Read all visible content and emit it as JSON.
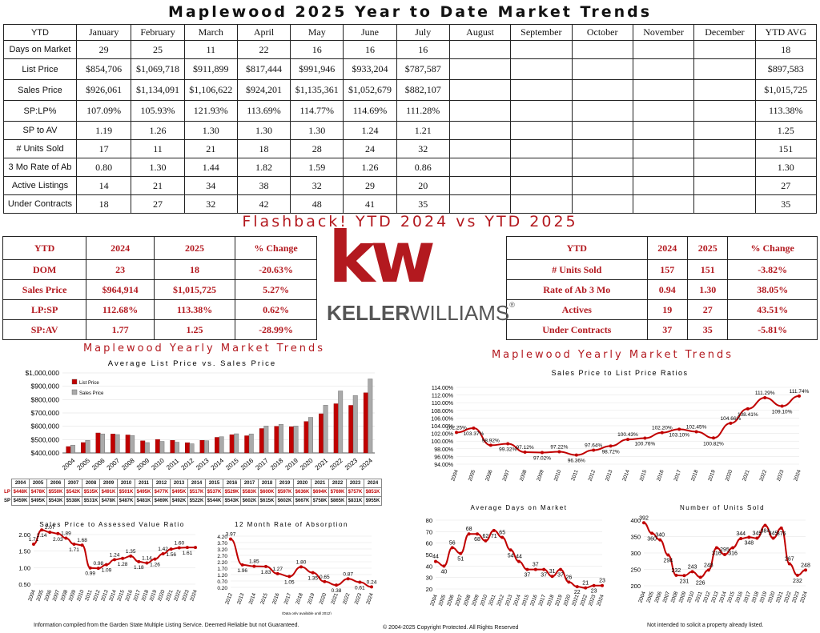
{
  "title": "Maplewood 2025 Year to Date Market Trends",
  "ytd_table": {
    "headers": [
      "YTD",
      "January",
      "February",
      "March",
      "April",
      "May",
      "June",
      "July",
      "August",
      "September",
      "October",
      "November",
      "December",
      "YTD AVG"
    ],
    "rows": [
      {
        "label": "Days on Market",
        "values": [
          "29",
          "25",
          "11",
          "22",
          "16",
          "16",
          "16",
          "",
          "",
          "",
          "",
          ""
        ],
        "avg": "18"
      },
      {
        "label": "List Price",
        "values": [
          "$854,706",
          "$1,069,718",
          "$911,899",
          "$817,444",
          "$991,946",
          "$933,204",
          "$787,587",
          "",
          "",
          "",
          "",
          ""
        ],
        "avg": "$897,583"
      },
      {
        "label": "Sales Price",
        "values": [
          "$926,061",
          "$1,134,091",
          "$1,106,622",
          "$924,201",
          "$1,135,361",
          "$1,052,679",
          "$882,107",
          "",
          "",
          "",
          "",
          ""
        ],
        "avg": "$1,015,725"
      },
      {
        "label": "SP:LP%",
        "values": [
          "107.09%",
          "105.93%",
          "121.93%",
          "113.69%",
          "114.77%",
          "114.69%",
          "111.28%",
          "",
          "",
          "",
          "",
          ""
        ],
        "avg": "113.38%"
      },
      {
        "label": "SP to AV",
        "values": [
          "1.19",
          "1.26",
          "1.30",
          "1.30",
          "1.30",
          "1.24",
          "1.21",
          "",
          "",
          "",
          "",
          ""
        ],
        "avg": "1.25"
      },
      {
        "label": "# Units Sold",
        "values": [
          "17",
          "11",
          "21",
          "18",
          "28",
          "24",
          "32",
          "",
          "",
          "",
          "",
          ""
        ],
        "avg": "151"
      },
      {
        "label": "3 Mo Rate of Ab",
        "values": [
          "0.80",
          "1.30",
          "1.44",
          "1.82",
          "1.59",
          "1.26",
          "0.86",
          "",
          "",
          "",
          "",
          ""
        ],
        "avg": "1.30"
      },
      {
        "label": "Active Listings",
        "values": [
          "14",
          "21",
          "34",
          "38",
          "32",
          "29",
          "20",
          "",
          "",
          "",
          "",
          ""
        ],
        "avg": "27"
      },
      {
        "label": "Under Contracts",
        "values": [
          "18",
          "27",
          "32",
          "42",
          "48",
          "41",
          "35",
          "",
          "",
          "",
          "",
          ""
        ],
        "avg": "35"
      }
    ]
  },
  "flashback_title": "Flashback!  YTD 2024 vs YTD 2025",
  "compare_left": {
    "headers": [
      "YTD",
      "2024",
      "2025",
      "% Change"
    ],
    "rows": [
      [
        "DOM",
        "23",
        "18",
        "-20.63%"
      ],
      [
        "Sales Price",
        "$964,914",
        "$1,015,725",
        "5.27%"
      ],
      [
        "LP:SP",
        "112.68%",
        "113.38%",
        "0.62%"
      ],
      [
        "SP:AV",
        "1.77",
        "1.25",
        "-28.99%"
      ]
    ]
  },
  "compare_right": {
    "headers": [
      "YTD",
      "2024",
      "2025",
      "% Change"
    ],
    "rows": [
      [
        "# Units Sold",
        "157",
        "151",
        "-3.82%"
      ],
      [
        "Rate of Ab 3 Mo",
        "0.94",
        "1.30",
        "38.05%"
      ],
      [
        "Actives",
        "19",
        "27",
        "43.51%"
      ],
      [
        "Under Contracts",
        "37",
        "35",
        "-5.81%"
      ]
    ]
  },
  "logo": {
    "kw": "kw",
    "keller": "KELLER",
    "williams": "WILLIAMS",
    "reg": "®",
    "color": "#b3191f"
  },
  "section_left": "Maplewood Yearly Market Trends",
  "section_right": "Maplewood Yearly Market Trends",
  "chart_data": [
    {
      "type": "bar",
      "title": "Average List Price vs. Sales Price",
      "categories": [
        "2004",
        "2005",
        "2006",
        "2007",
        "2008",
        "2009",
        "2010",
        "2011",
        "2012",
        "2013",
        "2014",
        "2015",
        "2016",
        "2017",
        "2018",
        "2019",
        "2020",
        "2021",
        "2022",
        "2023",
        "2024"
      ],
      "series": [
        {
          "name": "List Price",
          "color": "#c00000",
          "values": [
            448,
            478,
            550,
            542,
            535,
            491,
            501,
            495,
            477,
            495,
            517,
            537,
            529,
            583,
            600,
            597,
            636,
            694,
            769,
            757,
            851
          ]
        },
        {
          "name": "Sales Price",
          "color": "#aaaaaa",
          "values": [
            459,
            495,
            543,
            538,
            531,
            478,
            487,
            481,
            469,
            492,
            522,
            544,
            543,
            602,
            615,
            602,
            667,
            758,
            865,
            831,
            955
          ]
        }
      ],
      "ylim": [
        400000,
        1000000
      ],
      "yticks": [
        "$400,000",
        "$500,000",
        "$600,000",
        "$700,000",
        "$800,000",
        "$900,000",
        "$1,000,000"
      ],
      "legend": "top-left",
      "table_rows": [
        {
          "label": "",
          "values": [
            "2004",
            "2005",
            "2006",
            "2007",
            "2008",
            "2009",
            "2010",
            "2011",
            "2012",
            "2013",
            "2014",
            "2015",
            "2016",
            "2017",
            "2018",
            "2019",
            "2020",
            "2021",
            "2022",
            "2023",
            "2024"
          ]
        },
        {
          "label": "LP",
          "values": [
            "$448K",
            "$478K",
            "$550K",
            "$542K",
            "$535K",
            "$491K",
            "$501K",
            "$495K",
            "$477K",
            "$495K",
            "$517K",
            "$537K",
            "$529K",
            "$583K",
            "$600K",
            "$597K",
            "$636K",
            "$694K",
            "$769K",
            "$757K",
            "$851K"
          ]
        },
        {
          "label": "SP",
          "values": [
            "$459K",
            "$495K",
            "$543K",
            "$538K",
            "$531K",
            "$478K",
            "$487K",
            "$481K",
            "$469K",
            "$492K",
            "$522K",
            "$544K",
            "$543K",
            "$602K",
            "$615K",
            "$602K",
            "$667K",
            "$758K",
            "$865K",
            "$831K",
            "$955K"
          ]
        }
      ]
    },
    {
      "type": "line",
      "title": "Sales Price to List Price Ratios",
      "x": [
        "2004",
        "2005",
        "2006",
        "2007",
        "2008",
        "2009",
        "2010",
        "2011",
        "2012",
        "2013",
        "2014",
        "2015",
        "2016",
        "2017",
        "2018",
        "2019",
        "2020",
        "2021",
        "2022",
        "2023",
        "2024"
      ],
      "values": [
        102.25,
        103.37,
        98.92,
        99.32,
        97.12,
        97.02,
        97.22,
        96.36,
        97.64,
        98.72,
        100.43,
        100.76,
        102.2,
        103.1,
        102.45,
        100.82,
        104.66,
        108.41,
        111.29,
        109.1,
        111.74
      ],
      "labels": [
        "102.25%",
        "103.37%",
        "98.92%",
        "99.32%",
        "97.12%",
        "97.02%",
        "97.22%",
        "96.36%",
        "97.64%",
        "98.72%",
        "100.43%",
        "100.76%",
        "102.20%",
        "103.10%",
        "102.45%",
        "100.82%",
        "104.66%",
        "108.41%",
        "111.29%",
        "109.10%",
        "111.74%"
      ],
      "ylim": [
        94,
        114
      ],
      "yticks": [
        "94.00%",
        "96.00%",
        "98.00%",
        "100.00%",
        "102.00%",
        "104.00%",
        "106.00%",
        "108.00%",
        "110.00%",
        "112.00%",
        "114.00%"
      ],
      "color": "#c00000"
    },
    {
      "type": "line",
      "title": "Sales Price to Assessed Value Ratio",
      "x": [
        "2004",
        "2005",
        "2006",
        "2007",
        "2008",
        "2009",
        "2010",
        "2011",
        "2012",
        "2013",
        "2014",
        "2015",
        "2016",
        "2017",
        "2018",
        "2019",
        "2020",
        "2021",
        "2022",
        "2023",
        "2024"
      ],
      "values": [
        1.71,
        2.14,
        2.07,
        2.03,
        1.89,
        1.71,
        1.68,
        0.99,
        0.98,
        1.09,
        1.24,
        1.28,
        1.35,
        1.18,
        1.14,
        1.26,
        1.42,
        1.56,
        1.6,
        1.61,
        1.61
      ],
      "labels": [
        "1.71",
        "2.14",
        "2.07",
        "2.03",
        "1.89",
        "1.71",
        "1.68",
        "0.99",
        "0.98",
        "1.09",
        "1.24",
        "1.28",
        "1.35",
        "1.18",
        "1.14",
        "1.26",
        "1.42",
        "1.56",
        "1.60",
        "1.61",
        ""
      ],
      "ylim": [
        0.5,
        2.0
      ],
      "yticks": [
        "0.50",
        "1.00",
        "1.50",
        "2.00"
      ],
      "color": "#c00000"
    },
    {
      "type": "line",
      "title": "12 Month Rate of Absorption",
      "x": [
        "2012",
        "2013",
        "2014",
        "2015",
        "2016",
        "2017",
        "2018",
        "2019",
        "2020",
        "2021",
        "2022",
        "2023",
        "2024"
      ],
      "values": [
        3.97,
        1.96,
        1.85,
        1.83,
        1.27,
        1.05,
        1.8,
        1.35,
        0.65,
        0.38,
        0.87,
        0.61,
        0.24
      ],
      "labels": [
        "3.97",
        "1.96",
        "1.85",
        "1.83",
        "1.27",
        "1.05",
        "1.80",
        "1.35",
        "0.65",
        "0.38",
        "0.87",
        "0.61",
        "0.24"
      ],
      "ylim": [
        0.2,
        4.2
      ],
      "yticks": [
        "0.20",
        "0.70",
        "1.20",
        "1.70",
        "2.20",
        "2.70",
        "3.20",
        "3.70",
        "4.20"
      ],
      "footnote": "(Data only available until 2012)",
      "color": "#c00000"
    },
    {
      "type": "line",
      "title": "Average Days on Market",
      "x": [
        "2004",
        "2005",
        "2006",
        "2007",
        "2008",
        "2009",
        "2010",
        "2011",
        "2012",
        "2013",
        "2014",
        "2015",
        "2016",
        "2017",
        "2018",
        "2019",
        "2020",
        "2021",
        "2022",
        "2023",
        "2024"
      ],
      "values": [
        44,
        40,
        56,
        51,
        68,
        68,
        62,
        71,
        65,
        54,
        44,
        37,
        37,
        37,
        31,
        37,
        26,
        22,
        21,
        23,
        23
      ],
      "labels": [
        "44",
        "40",
        "56",
        "51",
        "68",
        "68",
        "62",
        "71",
        "65",
        "54",
        "44",
        "37",
        "37",
        "37",
        "31",
        "37",
        "26",
        "22",
        "21",
        "23",
        "23"
      ],
      "ylim": [
        20,
        80
      ],
      "yticks": [
        "20",
        "30",
        "40",
        "50",
        "60",
        "70",
        "80"
      ],
      "color": "#c00000"
    },
    {
      "type": "line",
      "title": "Number of Units Sold",
      "x": [
        "2004",
        "2005",
        "2006",
        "2007",
        "2008",
        "2009",
        "2010",
        "2011",
        "2012",
        "2013",
        "2014",
        "2015",
        "2016",
        "2017",
        "2018",
        "2019",
        "2020",
        "2021",
        "2022",
        "2023",
        "2024"
      ],
      "values": [
        392,
        360,
        340,
        294,
        232,
        231,
        243,
        226,
        248,
        316,
        295,
        316,
        344,
        348,
        345,
        384,
        345,
        376,
        267,
        232,
        248
      ],
      "labels": [
        "392",
        "360",
        "340",
        "294",
        "232",
        "231",
        "243",
        "226",
        "248",
        "316",
        "295",
        "316",
        "344",
        "348",
        "345",
        "384",
        "345",
        "376",
        "267",
        "232",
        "248"
      ],
      "ylim": [
        200,
        400
      ],
      "yticks": [
        "200",
        "250",
        "300",
        "350",
        "400"
      ],
      "color": "#c00000"
    }
  ],
  "footer": {
    "left": "Information compiled from the Garden State Multiple Listing Service.  Deemed Reliable but not Guaranteed.",
    "center": "© 2004-2025 Copyright Protected.  All Rights Reserved",
    "right": "Not intended to solicit a property already listed."
  }
}
